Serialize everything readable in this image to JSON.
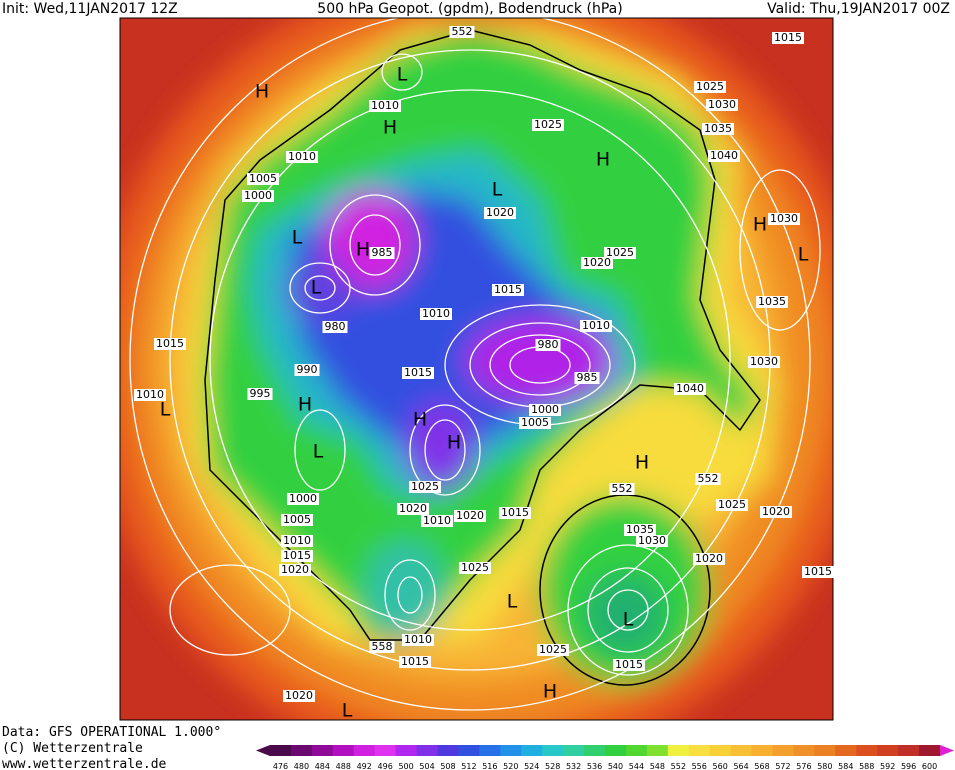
{
  "header": {
    "init": "Init: Wed,11JAN2017 12Z",
    "title": "500 hPa Geopot. (gpdm), Bodendruck (hPa)",
    "valid": "Valid: Thu,19JAN2017 00Z"
  },
  "footer": [
    "Data: GFS OPERATIONAL 1.000°",
    "(C) Wetterzentrale",
    "www.wetterzentrale.de"
  ],
  "colorbar": {
    "labels": [
      "476",
      "480",
      "484",
      "488",
      "492",
      "496",
      "500",
      "504",
      "508",
      "512",
      "516",
      "520",
      "524",
      "528",
      "532",
      "536",
      "540",
      "544",
      "548",
      "552",
      "556",
      "560",
      "564",
      "568",
      "572",
      "576",
      "580",
      "584",
      "588",
      "592",
      "596",
      "600"
    ]
  },
  "map": {
    "labels": [
      "552",
      "1015",
      "L",
      "H",
      "1010",
      "H",
      "1025",
      "1025",
      "1030",
      "1035",
      "1040",
      "H",
      "1010",
      "1005",
      "1000",
      "L",
      "1020",
      "H",
      "1030",
      "L",
      "H",
      "985",
      "1025",
      "1020",
      "L",
      "L",
      "1015",
      "1035",
      "980",
      "1010",
      "1010",
      "1015",
      "980",
      "1030",
      "990",
      "1015",
      "985",
      "1010",
      "995",
      "1040",
      "H",
      "L",
      "1000",
      "H",
      "1005",
      "H",
      "L",
      "H",
      "552",
      "1025",
      "552",
      "1000",
      "1020",
      "1010",
      "1020",
      "1015",
      "1025",
      "1020",
      "1005",
      "1035",
      "1030",
      "1010",
      "1015",
      "1020",
      "1020",
      "1025",
      "1015",
      "L",
      "L",
      "1010",
      "558",
      "1025",
      "1015",
      "1015",
      "H",
      "1020",
      "L"
    ]
  }
}
